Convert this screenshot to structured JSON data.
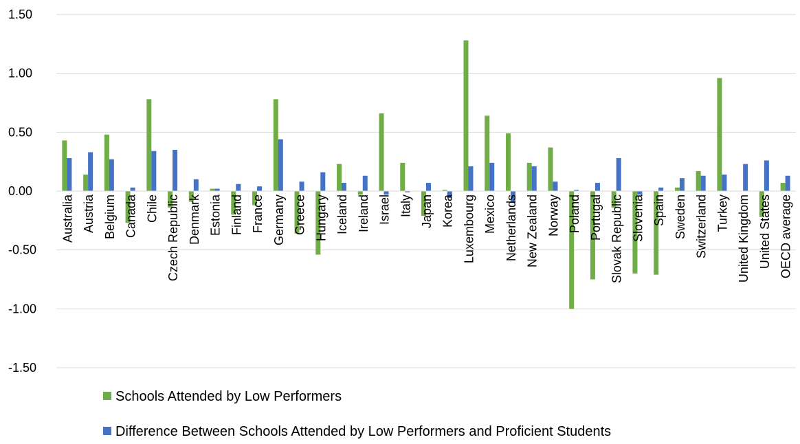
{
  "chart_data": {
    "type": "bar",
    "title": "",
    "xlabel": "",
    "ylabel": "",
    "ylim": [
      -1.5,
      1.5
    ],
    "yticks": [
      1.5,
      1.0,
      0.5,
      0.0,
      -0.5,
      -1.0,
      -1.5
    ],
    "ytick_labels": [
      "1.50",
      "1.00",
      "0.50",
      "0.00",
      "-0.50",
      "-1.00",
      "-1.50"
    ],
    "grid": "horizontal",
    "legend_position": "bottom",
    "categories": [
      "Australia",
      "Austria",
      "Belgium",
      "Canada",
      "Chile",
      "Czech Republic",
      "Denmark",
      "Estonia",
      "Finland",
      "France",
      "Germany",
      "Greece",
      "Hungary",
      "Iceland",
      "Ireland",
      "Israel",
      "Italy",
      "Japan",
      "Korea",
      "Luxembourg",
      "Mexico",
      "Netherlands",
      "New Zealand",
      "Norway",
      "Poland",
      "Portugal",
      "Slovak Republic",
      "Slovenia",
      "Spain",
      "Sweden",
      "Switzerland",
      "Turkey",
      "United Kingdom",
      "United States",
      "OECD average"
    ],
    "series": [
      {
        "name": "Schools Attended by Low Performers",
        "color": "#70AD47",
        "values": [
          0.43,
          0.14,
          0.48,
          -0.27,
          0.78,
          -0.14,
          -0.09,
          0.02,
          -0.2,
          -0.12,
          0.78,
          -0.36,
          -0.54,
          0.23,
          -0.03,
          0.66,
          0.24,
          -0.21,
          0.01,
          1.28,
          0.64,
          0.49,
          0.24,
          0.37,
          -1.0,
          -0.75,
          -0.14,
          -0.7,
          -0.71,
          0.03,
          0.17,
          0.96,
          0.0,
          -0.22,
          0.07
        ]
      },
      {
        "name": "Difference Between Schools Attended by Low Performers and Proficient Students",
        "color": "#4472C4",
        "values": [
          0.28,
          0.33,
          0.27,
          0.03,
          0.34,
          0.35,
          0.1,
          0.02,
          0.06,
          0.04,
          0.44,
          0.08,
          0.16,
          0.07,
          0.13,
          -0.03,
          -0.01,
          0.07,
          -0.06,
          0.21,
          0.24,
          -0.1,
          0.21,
          0.08,
          0.01,
          0.07,
          0.28,
          -0.03,
          0.03,
          0.11,
          0.13,
          0.14,
          0.23,
          0.26,
          0.13
        ]
      }
    ]
  }
}
